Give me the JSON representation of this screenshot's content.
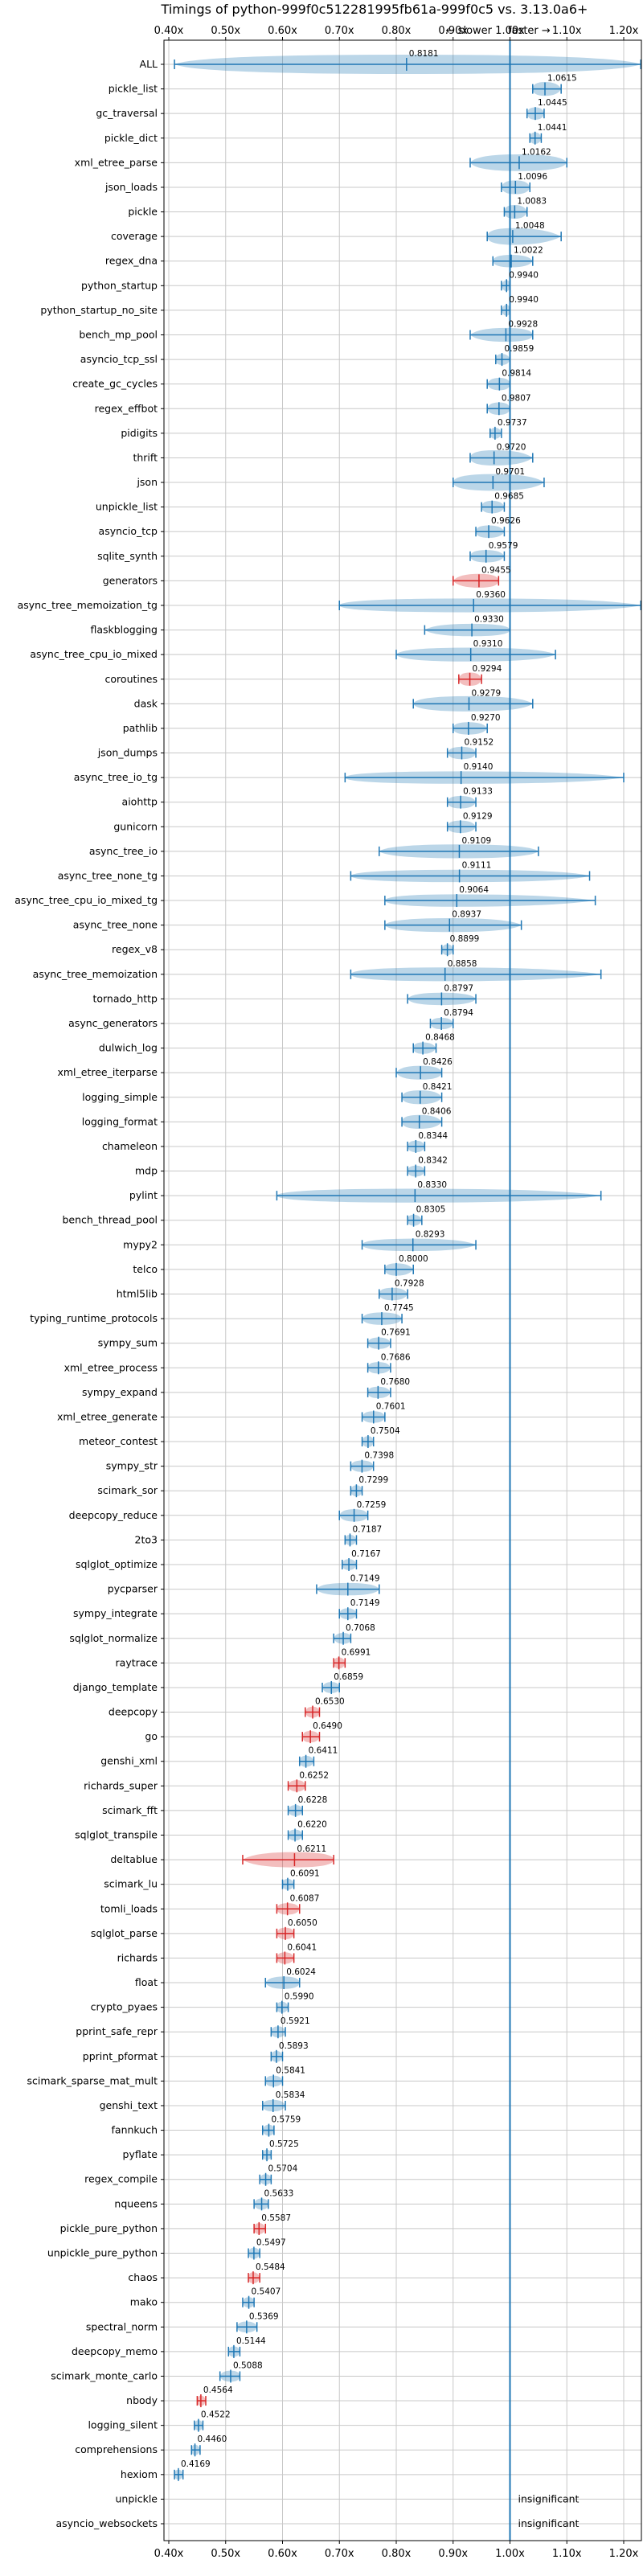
{
  "chart_data": {
    "type": "violin",
    "title": "Timings of python-999f0c512281995fb61a-999f0c5 vs. 3.13.0a6+",
    "direction_labels": {
      "slower": "← slower",
      "faster": "faster →"
    },
    "x_ticks": [
      "0.40x",
      "0.50x",
      "0.60x",
      "0.70x",
      "0.80x",
      "0.90x",
      "1.00x",
      "1.10x",
      "1.20x"
    ],
    "xlim": [
      0.4,
      1.2
    ],
    "scale": "reciprocal",
    "grid": true,
    "insignificant_label": "insignificant",
    "colors": {
      "normal": "#1f77b4",
      "highlight": "#d62728",
      "baseline": "#1f77b4"
    },
    "benchmarks": [
      {
        "name": "ALL",
        "value": 0.8181,
        "label": "0.8181",
        "lo": 0.41,
        "hi": 1.23,
        "spread": 0.12,
        "hl": false
      },
      {
        "name": "pickle_list",
        "value": 1.0615,
        "label": "1.0615",
        "lo": 1.04,
        "hi": 1.09,
        "spread": 0.02,
        "hl": false
      },
      {
        "name": "gc_traversal",
        "value": 1.0445,
        "label": "1.0445",
        "lo": 1.03,
        "hi": 1.06,
        "spread": 0.015,
        "hl": false
      },
      {
        "name": "pickle_dict",
        "value": 1.0441,
        "label": "1.0441",
        "lo": 1.035,
        "hi": 1.055,
        "spread": 0.012,
        "hl": false
      },
      {
        "name": "xml_etree_parse",
        "value": 1.0162,
        "label": "1.0162",
        "lo": 0.93,
        "hi": 1.1,
        "spread": 0.03,
        "hl": false
      },
      {
        "name": "json_loads",
        "value": 1.0096,
        "label": "1.0096",
        "lo": 0.985,
        "hi": 1.035,
        "spread": 0.02,
        "hl": false
      },
      {
        "name": "pickle",
        "value": 1.0083,
        "label": "1.0083",
        "lo": 0.99,
        "hi": 1.03,
        "spread": 0.02,
        "hl": false
      },
      {
        "name": "coverage",
        "value": 1.0048,
        "label": "1.0048",
        "lo": 0.96,
        "hi": 1.09,
        "spread": 0.03,
        "hl": false
      },
      {
        "name": "regex_dna",
        "value": 1.0022,
        "label": "1.0022",
        "lo": 0.97,
        "hi": 1.04,
        "spread": 0.015,
        "hl": false
      },
      {
        "name": "python_startup",
        "value": 0.994,
        "label": "0.9940",
        "lo": 0.985,
        "hi": 1.0,
        "spread": 0.01,
        "hl": false
      },
      {
        "name": "python_startup_no_site",
        "value": 0.994,
        "label": "0.9940",
        "lo": 0.985,
        "hi": 1.0,
        "spread": 0.01,
        "hl": false
      },
      {
        "name": "bench_mp_pool",
        "value": 0.9928,
        "label": "0.9928",
        "lo": 0.93,
        "hi": 1.04,
        "spread": 0.02,
        "hl": false
      },
      {
        "name": "asyncio_tcp_ssl",
        "value": 0.9859,
        "label": "0.9859",
        "lo": 0.975,
        "hi": 1.0,
        "spread": 0.01,
        "hl": false
      },
      {
        "name": "create_gc_cycles",
        "value": 0.9814,
        "label": "0.9814",
        "lo": 0.96,
        "hi": 1.0,
        "spread": 0.015,
        "hl": false
      },
      {
        "name": "regex_effbot",
        "value": 0.9807,
        "label": "0.9807",
        "lo": 0.96,
        "hi": 1.0,
        "spread": 0.015,
        "hl": false
      },
      {
        "name": "pidigits",
        "value": 0.9737,
        "label": "0.9737",
        "lo": 0.965,
        "hi": 0.985,
        "spread": 0.01,
        "hl": false
      },
      {
        "name": "thrift",
        "value": 0.972,
        "label": "0.9720",
        "lo": 0.93,
        "hi": 1.04,
        "spread": 0.025,
        "hl": false
      },
      {
        "name": "json",
        "value": 0.9701,
        "label": "0.9701",
        "lo": 0.9,
        "hi": 1.06,
        "spread": 0.03,
        "hl": false
      },
      {
        "name": "unpickle_list",
        "value": 0.9685,
        "label": "0.9685",
        "lo": 0.95,
        "hi": 0.99,
        "spread": 0.015,
        "hl": false
      },
      {
        "name": "asyncio_tcp",
        "value": 0.9626,
        "label": "0.9626",
        "lo": 0.94,
        "hi": 0.99,
        "spread": 0.015,
        "hl": false
      },
      {
        "name": "sqlite_synth",
        "value": 0.9579,
        "label": "0.9579",
        "lo": 0.93,
        "hi": 0.99,
        "spread": 0.015,
        "hl": false
      },
      {
        "name": "generators",
        "value": 0.9455,
        "label": "0.9455",
        "lo": 0.9,
        "hi": 0.98,
        "spread": 0.02,
        "hl": true
      },
      {
        "name": "async_tree_memoization_tg",
        "value": 0.936,
        "label": "0.9360",
        "lo": 0.7,
        "hi": 1.23,
        "spread": 0.02,
        "hl": false
      },
      {
        "name": "flaskblogging",
        "value": 0.933,
        "label": "0.9330",
        "lo": 0.85,
        "hi": 1.0,
        "spread": 0.015,
        "hl": false
      },
      {
        "name": "async_tree_cpu_io_mixed",
        "value": 0.931,
        "label": "0.9310",
        "lo": 0.8,
        "hi": 1.08,
        "spread": 0.02,
        "hl": false
      },
      {
        "name": "coroutines",
        "value": 0.9294,
        "label": "0.9294",
        "lo": 0.91,
        "hi": 0.95,
        "spread": 0.018,
        "hl": true
      },
      {
        "name": "dask",
        "value": 0.9279,
        "label": "0.9279",
        "lo": 0.83,
        "hi": 1.04,
        "spread": 0.025,
        "hl": false
      },
      {
        "name": "pathlib",
        "value": 0.927,
        "label": "0.9270",
        "lo": 0.9,
        "hi": 0.96,
        "spread": 0.015,
        "hl": false
      },
      {
        "name": "json_dumps",
        "value": 0.9152,
        "label": "0.9152",
        "lo": 0.89,
        "hi": 0.94,
        "spread": 0.015,
        "hl": false
      },
      {
        "name": "async_tree_io_tg",
        "value": 0.914,
        "label": "0.9140",
        "lo": 0.71,
        "hi": 1.2,
        "spread": 0.015,
        "hl": false
      },
      {
        "name": "aiohttp",
        "value": 0.9133,
        "label": "0.9133",
        "lo": 0.89,
        "hi": 0.94,
        "spread": 0.015,
        "hl": false
      },
      {
        "name": "gunicorn",
        "value": 0.9129,
        "label": "0.9129",
        "lo": 0.89,
        "hi": 0.94,
        "spread": 0.015,
        "hl": false
      },
      {
        "name": "async_tree_io",
        "value": 0.9109,
        "label": "0.9109",
        "lo": 0.77,
        "hi": 1.05,
        "spread": 0.02,
        "hl": false
      },
      {
        "name": "async_tree_none_tg",
        "value": 0.9111,
        "label": "0.9111",
        "lo": 0.72,
        "hi": 1.14,
        "spread": 0.015,
        "hl": false
      },
      {
        "name": "async_tree_cpu_io_mixed_tg",
        "value": 0.9064,
        "label": "0.9064",
        "lo": 0.78,
        "hi": 1.15,
        "spread": 0.015,
        "hl": false
      },
      {
        "name": "async_tree_none",
        "value": 0.8937,
        "label": "0.8937",
        "lo": 0.78,
        "hi": 1.02,
        "spread": 0.02,
        "hl": false
      },
      {
        "name": "regex_v8",
        "value": 0.8899,
        "label": "0.8899",
        "lo": 0.88,
        "hi": 0.9,
        "spread": 0.01,
        "hl": false
      },
      {
        "name": "async_tree_memoization",
        "value": 0.8858,
        "label": "0.8858",
        "lo": 0.72,
        "hi": 1.16,
        "spread": 0.02,
        "hl": false
      },
      {
        "name": "tornado_http",
        "value": 0.8797,
        "label": "0.8797",
        "lo": 0.82,
        "hi": 0.94,
        "spread": 0.015,
        "hl": false
      },
      {
        "name": "async_generators",
        "value": 0.8794,
        "label": "0.8794",
        "lo": 0.86,
        "hi": 0.9,
        "spread": 0.012,
        "hl": false
      },
      {
        "name": "dulwich_log",
        "value": 0.8468,
        "label": "0.8468",
        "lo": 0.83,
        "hi": 0.87,
        "spread": 0.012,
        "hl": false
      },
      {
        "name": "xml_etree_iterparse",
        "value": 0.8426,
        "label": "0.8426",
        "lo": 0.8,
        "hi": 0.88,
        "spread": 0.02,
        "hl": false
      },
      {
        "name": "logging_simple",
        "value": 0.8421,
        "label": "0.8421",
        "lo": 0.81,
        "hi": 0.88,
        "spread": 0.02,
        "hl": false
      },
      {
        "name": "logging_format",
        "value": 0.8406,
        "label": "0.8406",
        "lo": 0.81,
        "hi": 0.88,
        "spread": 0.02,
        "hl": false
      },
      {
        "name": "chameleon",
        "value": 0.8344,
        "label": "0.8344",
        "lo": 0.82,
        "hi": 0.85,
        "spread": 0.012,
        "hl": false
      },
      {
        "name": "mdp",
        "value": 0.8342,
        "label": "0.8342",
        "lo": 0.82,
        "hi": 0.85,
        "spread": 0.01,
        "hl": false
      },
      {
        "name": "pylint",
        "value": 0.833,
        "label": "0.8330",
        "lo": 0.59,
        "hi": 1.16,
        "spread": 0.02,
        "hl": false
      },
      {
        "name": "bench_thread_pool",
        "value": 0.8305,
        "label": "0.8305",
        "lo": 0.82,
        "hi": 0.845,
        "spread": 0.01,
        "hl": false
      },
      {
        "name": "mypy2",
        "value": 0.8293,
        "label": "0.8293",
        "lo": 0.74,
        "hi": 0.94,
        "spread": 0.015,
        "hl": false
      },
      {
        "name": "telco",
        "value": 0.8,
        "label": "0.8000",
        "lo": 0.78,
        "hi": 0.83,
        "spread": 0.015,
        "hl": false
      },
      {
        "name": "html5lib",
        "value": 0.7928,
        "label": "0.7928",
        "lo": 0.77,
        "hi": 0.82,
        "spread": 0.015,
        "hl": false
      },
      {
        "name": "typing_runtime_protocols",
        "value": 0.7745,
        "label": "0.7745",
        "lo": 0.74,
        "hi": 0.81,
        "spread": 0.015,
        "hl": false
      },
      {
        "name": "sympy_sum",
        "value": 0.7691,
        "label": "0.7691",
        "lo": 0.75,
        "hi": 0.79,
        "spread": 0.012,
        "hl": false
      },
      {
        "name": "xml_etree_process",
        "value": 0.7686,
        "label": "0.7686",
        "lo": 0.75,
        "hi": 0.79,
        "spread": 0.012,
        "hl": false
      },
      {
        "name": "sympy_expand",
        "value": 0.768,
        "label": "0.7680",
        "lo": 0.75,
        "hi": 0.79,
        "spread": 0.012,
        "hl": false
      },
      {
        "name": "xml_etree_generate",
        "value": 0.7601,
        "label": "0.7601",
        "lo": 0.74,
        "hi": 0.78,
        "spread": 0.012,
        "hl": false
      },
      {
        "name": "meteor_contest",
        "value": 0.7504,
        "label": "0.7504",
        "lo": 0.74,
        "hi": 0.76,
        "spread": 0.01,
        "hl": false
      },
      {
        "name": "sympy_str",
        "value": 0.7398,
        "label": "0.7398",
        "lo": 0.72,
        "hi": 0.76,
        "spread": 0.012,
        "hl": false
      },
      {
        "name": "scimark_sor",
        "value": 0.7299,
        "label": "0.7299",
        "lo": 0.72,
        "hi": 0.74,
        "spread": 0.01,
        "hl": false
      },
      {
        "name": "deepcopy_reduce",
        "value": 0.7259,
        "label": "0.7259",
        "lo": 0.7,
        "hi": 0.75,
        "spread": 0.015,
        "hl": false
      },
      {
        "name": "2to3",
        "value": 0.7187,
        "label": "0.7187",
        "lo": 0.71,
        "hi": 0.73,
        "spread": 0.008,
        "hl": false
      },
      {
        "name": "sqlglot_optimize",
        "value": 0.7167,
        "label": "0.7167",
        "lo": 0.705,
        "hi": 0.73,
        "spread": 0.01,
        "hl": false
      },
      {
        "name": "pycparser",
        "value": 0.7149,
        "label": "0.7149",
        "lo": 0.66,
        "hi": 0.77,
        "spread": 0.015,
        "hl": false
      },
      {
        "name": "sympy_integrate",
        "value": 0.7149,
        "label": "0.7149",
        "lo": 0.7,
        "hi": 0.73,
        "spread": 0.01,
        "hl": false
      },
      {
        "name": "sqlglot_normalize",
        "value": 0.7068,
        "label": "0.7068",
        "lo": 0.69,
        "hi": 0.72,
        "spread": 0.01,
        "hl": false
      },
      {
        "name": "raytrace",
        "value": 0.6991,
        "label": "0.6991",
        "lo": 0.69,
        "hi": 0.71,
        "spread": 0.01,
        "hl": true
      },
      {
        "name": "django_template",
        "value": 0.6859,
        "label": "0.6859",
        "lo": 0.67,
        "hi": 0.7,
        "spread": 0.01,
        "hl": false
      },
      {
        "name": "deepcopy",
        "value": 0.653,
        "label": "0.6530",
        "lo": 0.64,
        "hi": 0.665,
        "spread": 0.01,
        "hl": true
      },
      {
        "name": "go",
        "value": 0.649,
        "label": "0.6490",
        "lo": 0.635,
        "hi": 0.665,
        "spread": 0.012,
        "hl": true
      },
      {
        "name": "genshi_xml",
        "value": 0.6411,
        "label": "0.6411",
        "lo": 0.63,
        "hi": 0.655,
        "spread": 0.01,
        "hl": false
      },
      {
        "name": "richards_super",
        "value": 0.6252,
        "label": "0.6252",
        "lo": 0.61,
        "hi": 0.64,
        "spread": 0.012,
        "hl": true
      },
      {
        "name": "scimark_fft",
        "value": 0.6228,
        "label": "0.6228",
        "lo": 0.61,
        "hi": 0.635,
        "spread": 0.01,
        "hl": false
      },
      {
        "name": "sqlglot_transpile",
        "value": 0.622,
        "label": "0.6220",
        "lo": 0.61,
        "hi": 0.635,
        "spread": 0.01,
        "hl": false
      },
      {
        "name": "deltablue",
        "value": 0.6211,
        "label": "0.6211",
        "lo": 0.53,
        "hi": 0.69,
        "spread": 0.025,
        "hl": true
      },
      {
        "name": "scimark_lu",
        "value": 0.6091,
        "label": "0.6091",
        "lo": 0.6,
        "hi": 0.62,
        "spread": 0.01,
        "hl": false
      },
      {
        "name": "tomli_loads",
        "value": 0.6087,
        "label": "0.6087",
        "lo": 0.59,
        "hi": 0.63,
        "spread": 0.012,
        "hl": true
      },
      {
        "name": "sqlglot_parse",
        "value": 0.605,
        "label": "0.6050",
        "lo": 0.59,
        "hi": 0.62,
        "spread": 0.012,
        "hl": true
      },
      {
        "name": "richards",
        "value": 0.6041,
        "label": "0.6041",
        "lo": 0.59,
        "hi": 0.62,
        "spread": 0.012,
        "hl": true
      },
      {
        "name": "float",
        "value": 0.6024,
        "label": "0.6024",
        "lo": 0.57,
        "hi": 0.63,
        "spread": 0.015,
        "hl": false
      },
      {
        "name": "crypto_pyaes",
        "value": 0.599,
        "label": "0.5990",
        "lo": 0.59,
        "hi": 0.61,
        "spread": 0.01,
        "hl": false
      },
      {
        "name": "pprint_safe_repr",
        "value": 0.5921,
        "label": "0.5921",
        "lo": 0.58,
        "hi": 0.605,
        "spread": 0.01,
        "hl": false
      },
      {
        "name": "pprint_pformat",
        "value": 0.5893,
        "label": "0.5893",
        "lo": 0.58,
        "hi": 0.6,
        "spread": 0.01,
        "hl": false
      },
      {
        "name": "scimark_sparse_mat_mult",
        "value": 0.5841,
        "label": "0.5841",
        "lo": 0.57,
        "hi": 0.6,
        "spread": 0.01,
        "hl": false
      },
      {
        "name": "genshi_text",
        "value": 0.5834,
        "label": "0.5834",
        "lo": 0.565,
        "hi": 0.605,
        "spread": 0.012,
        "hl": false
      },
      {
        "name": "fannkuch",
        "value": 0.5759,
        "label": "0.5759",
        "lo": 0.565,
        "hi": 0.585,
        "spread": 0.01,
        "hl": false
      },
      {
        "name": "pyflate",
        "value": 0.5725,
        "label": "0.5725",
        "lo": 0.565,
        "hi": 0.58,
        "spread": 0.008,
        "hl": false
      },
      {
        "name": "regex_compile",
        "value": 0.5704,
        "label": "0.5704",
        "lo": 0.56,
        "hi": 0.58,
        "spread": 0.008,
        "hl": false
      },
      {
        "name": "nqueens",
        "value": 0.5633,
        "label": "0.5633",
        "lo": 0.55,
        "hi": 0.575,
        "spread": 0.01,
        "hl": false
      },
      {
        "name": "pickle_pure_python",
        "value": 0.5587,
        "label": "0.5587",
        "lo": 0.55,
        "hi": 0.57,
        "spread": 0.01,
        "hl": true
      },
      {
        "name": "unpickle_pure_python",
        "value": 0.5497,
        "label": "0.5497",
        "lo": 0.54,
        "hi": 0.56,
        "spread": 0.01,
        "hl": false
      },
      {
        "name": "chaos",
        "value": 0.5484,
        "label": "0.5484",
        "lo": 0.54,
        "hi": 0.56,
        "spread": 0.01,
        "hl": true
      },
      {
        "name": "mako",
        "value": 0.5407,
        "label": "0.5407",
        "lo": 0.53,
        "hi": 0.55,
        "spread": 0.008,
        "hl": false
      },
      {
        "name": "spectral_norm",
        "value": 0.5369,
        "label": "0.5369",
        "lo": 0.52,
        "hi": 0.555,
        "spread": 0.01,
        "hl": false
      },
      {
        "name": "deepcopy_memo",
        "value": 0.5144,
        "label": "0.5144",
        "lo": 0.505,
        "hi": 0.525,
        "spread": 0.008,
        "hl": false
      },
      {
        "name": "scimark_monte_carlo",
        "value": 0.5088,
        "label": "0.5088",
        "lo": 0.49,
        "hi": 0.525,
        "spread": 0.01,
        "hl": false
      },
      {
        "name": "nbody",
        "value": 0.4564,
        "label": "0.4564",
        "lo": 0.45,
        "hi": 0.465,
        "spread": 0.008,
        "hl": true
      },
      {
        "name": "logging_silent",
        "value": 0.4522,
        "label": "0.4522",
        "lo": 0.445,
        "hi": 0.46,
        "spread": 0.008,
        "hl": false
      },
      {
        "name": "comprehensions",
        "value": 0.446,
        "label": "0.4460",
        "lo": 0.44,
        "hi": 0.455,
        "spread": 0.008,
        "hl": false
      },
      {
        "name": "hexiom",
        "value": 0.4169,
        "label": "0.4169",
        "lo": 0.41,
        "hi": 0.425,
        "spread": 0.006,
        "hl": false
      },
      {
        "name": "unpickle",
        "value": null,
        "label": "",
        "insignificant": true
      },
      {
        "name": "asyncio_websockets",
        "value": null,
        "label": "",
        "insignificant": true
      }
    ]
  }
}
